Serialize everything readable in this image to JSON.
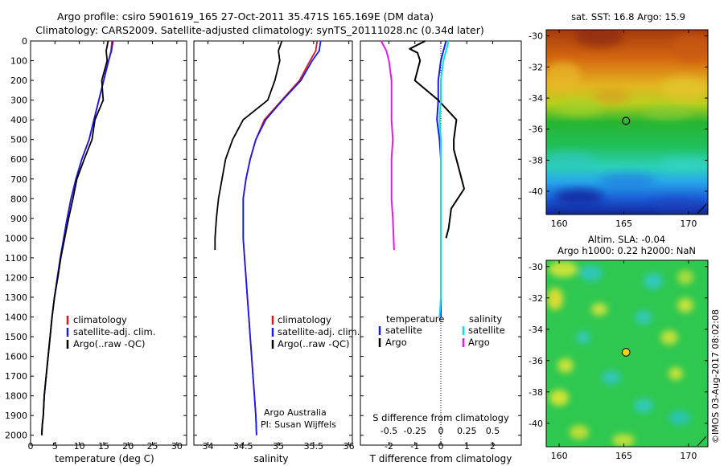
{
  "header": {
    "title_line1": "Argo profile: csiro 5901619_165 27-Oct-2011 35.471S 165.169E (DM data)",
    "title_line2": "Climatology: CARS2009. Satellite-adjusted climatology: synTS_20111028.nc (0.34d later)"
  },
  "colors": {
    "climatology": "#d11b1b",
    "satellite": "#1a1ae6",
    "argo": "#000000",
    "sal_satellite": "#00e6e6",
    "sal_argo": "#e619e6"
  },
  "chart_data": [
    {
      "type": "line",
      "panel": "temperature",
      "xlabel": "temperature (deg C)",
      "ylabel": "",
      "xlim": [
        0,
        32
      ],
      "ylim": [
        2050,
        0
      ],
      "xticks": [
        0,
        5,
        10,
        15,
        20,
        25,
        30
      ],
      "yticks": [
        0,
        100,
        200,
        300,
        400,
        500,
        600,
        700,
        800,
        900,
        1000,
        1100,
        1200,
        1300,
        1400,
        1500,
        1600,
        1700,
        1800,
        1900,
        2000
      ],
      "legend": [
        "climatology",
        "satellite-adj. clim.",
        "Argo(..raw -QC)"
      ],
      "series": [
        {
          "name": "climatology",
          "x": [
            16.7,
            16.5,
            16.0,
            15.0,
            14.0,
            13.0,
            12.0,
            10.5,
            9.3,
            8.3,
            7.5,
            6.8,
            6.1,
            5.5,
            4.9,
            4.4,
            4.0,
            3.6,
            3.2,
            2.8,
            2.6,
            2.4,
            2.3
          ],
          "y": [
            0,
            50,
            100,
            200,
            300,
            400,
            500,
            600,
            700,
            800,
            900,
            1000,
            1100,
            1200,
            1300,
            1400,
            1500,
            1600,
            1700,
            1800,
            1900,
            1950,
            2000
          ]
        },
        {
          "name": "satellite-adj. clim.",
          "x": [
            16.9,
            16.6,
            16.0,
            15.0,
            14.0,
            13.0,
            12.0,
            10.5,
            9.3,
            8.3,
            7.5,
            6.8,
            6.1,
            5.5,
            4.9,
            4.4,
            4.0,
            3.6,
            3.2,
            2.8,
            2.6,
            2.4,
            2.3
          ],
          "y": [
            0,
            50,
            100,
            200,
            300,
            400,
            500,
            600,
            700,
            800,
            900,
            1000,
            1100,
            1200,
            1300,
            1400,
            1500,
            1600,
            1700,
            1800,
            1900,
            1950,
            2000
          ]
        },
        {
          "name": "Argo(..raw -QC)",
          "x": [
            15.9,
            15.5,
            15.7,
            14.6,
            14.9,
            13.2,
            12.6,
            11.0,
            9.5,
            8.7,
            7.8,
            7.0,
            6.2,
            5.6,
            4.9,
            4.4,
            4.0,
            3.6,
            3.2,
            2.8,
            2.6,
            2.4,
            2.3
          ],
          "y": [
            0,
            50,
            100,
            200,
            300,
            400,
            500,
            600,
            700,
            800,
            900,
            1000,
            1100,
            1200,
            1300,
            1400,
            1500,
            1600,
            1700,
            1800,
            1900,
            1950,
            2000
          ]
        }
      ]
    },
    {
      "type": "line",
      "panel": "salinity",
      "xlabel": "salinity",
      "xlim": [
        33.8,
        36.05
      ],
      "ylim": [
        2050,
        0
      ],
      "xticks": [
        34,
        34.5,
        35,
        35.5,
        36
      ],
      "legend": [
        "climatology",
        "satellite-adj. clim.",
        "Argo(..raw -QC)"
      ],
      "annotation": [
        "Argo Australia",
        "PI: Susan Wijffels"
      ],
      "series": [
        {
          "name": "climatology",
          "x": [
            35.55,
            35.53,
            35.45,
            35.3,
            35.05,
            34.8,
            34.68,
            34.6,
            34.54,
            34.5,
            34.5,
            34.5,
            34.52,
            34.54,
            34.56,
            34.58,
            34.6,
            34.62,
            34.64,
            34.66,
            34.68,
            34.69
          ],
          "y": [
            0,
            50,
            100,
            200,
            300,
            400,
            500,
            600,
            700,
            800,
            900,
            1000,
            1100,
            1200,
            1300,
            1400,
            1500,
            1600,
            1700,
            1800,
            1900,
            2000
          ]
        },
        {
          "name": "satellite-adj. clim.",
          "x": [
            35.6,
            35.58,
            35.48,
            35.32,
            35.06,
            34.82,
            34.68,
            34.6,
            34.54,
            34.5,
            34.5,
            34.5,
            34.52,
            34.54,
            34.56,
            34.58,
            34.6,
            34.62,
            34.64,
            34.66,
            34.68,
            34.69
          ],
          "y": [
            0,
            50,
            100,
            200,
            300,
            400,
            500,
            600,
            700,
            800,
            900,
            1000,
            1100,
            1200,
            1300,
            1400,
            1500,
            1600,
            1700,
            1800,
            1900,
            2000
          ]
        },
        {
          "name": "Argo(..raw -QC)",
          "x": [
            35.05,
            35.0,
            35.02,
            34.95,
            34.85,
            34.5,
            34.35,
            34.25,
            34.2,
            34.15,
            34.12,
            34.1,
            34.1
          ],
          "y": [
            0,
            50,
            100,
            200,
            300,
            400,
            500,
            600,
            700,
            800,
            900,
            1000,
            1060
          ]
        }
      ]
    },
    {
      "type": "line",
      "panel": "difference",
      "xlabel": "T difference from climatology",
      "xlabel_top": "S difference from climatology",
      "xlim": [
        -3.1,
        3.1
      ],
      "ylim": [
        2050,
        0
      ],
      "xticks_bottom": [
        -2,
        -1,
        0,
        1,
        2
      ],
      "xticks_top_labels": [
        "-0.5",
        "-0.25",
        "0",
        "0.25",
        "0.5"
      ],
      "xticks_top_values": [
        -2,
        -1,
        0,
        1,
        2
      ],
      "legend_temperature": [
        "temperature",
        "satellite",
        "Argo"
      ],
      "legend_salinity": [
        "salinity",
        "satellite",
        "Argo"
      ],
      "series": [
        {
          "name": "T satellite",
          "x": [
            0.2,
            0.1,
            0.0,
            -0.1,
            -0.1,
            -0.15,
            -0.05,
            0.0,
            0.0,
            0.0,
            0.0,
            0.0,
            0.0,
            0.0,
            0.0,
            0.0
          ],
          "y": [
            0,
            50,
            100,
            200,
            300,
            400,
            500,
            600,
            700,
            800,
            900,
            1000,
            1100,
            1200,
            1300,
            1400
          ]
        },
        {
          "name": "T Argo",
          "x": [
            -0.6,
            -1.2,
            -0.9,
            -0.8,
            -1.0,
            -0.1,
            0.6,
            0.5,
            0.5,
            0.7,
            0.9,
            0.4,
            0.3,
            0.2
          ],
          "y": [
            0,
            40,
            60,
            100,
            200,
            300,
            400,
            500,
            550,
            650,
            750,
            850,
            950,
            1000
          ]
        },
        {
          "name": "S satellite",
          "x": [
            0.3,
            0.2,
            0.1,
            0.0,
            0.0,
            -0.05,
            0.0,
            0.0,
            0.0,
            0.0,
            0.0,
            0.0,
            0.0,
            0.0,
            0.0,
            -0.05
          ],
          "y": [
            0,
            50,
            100,
            200,
            300,
            400,
            500,
            600,
            700,
            800,
            900,
            1000,
            1100,
            1200,
            1300,
            1400
          ]
        },
        {
          "name": "S Argo",
          "x": [
            -2.3,
            -2.1,
            -2.0,
            -1.9,
            -1.9,
            -1.9,
            -1.85,
            -1.9,
            -1.9,
            -1.9,
            -1.85,
            -1.8
          ],
          "y": [
            0,
            50,
            100,
            200,
            300,
            400,
            500,
            600,
            700,
            800,
            900,
            1060
          ]
        }
      ]
    },
    {
      "type": "heatmap",
      "panel": "sat-sst-map",
      "title": "sat. SST: 16.8 Argo: 15.9",
      "xlim": [
        159,
        171.5
      ],
      "ylim": [
        -41.5,
        -29.6
      ],
      "xticks": [
        160,
        165,
        170
      ],
      "yticks": [
        -30,
        -32,
        -34,
        -36,
        -38,
        -40
      ],
      "marker": {
        "lon": 165.169,
        "lat": -35.471
      }
    },
    {
      "type": "heatmap",
      "panel": "sla-map",
      "title_line1": "Altim. SLA: -0.04",
      "title_line2": "Argo h1000: 0.22 h2000: NaN",
      "xlim": [
        159,
        171.5
      ],
      "ylim": [
        -41.5,
        -29.6
      ],
      "xticks": [
        160,
        165,
        170
      ],
      "yticks": [
        -30,
        -32,
        -34,
        -36,
        -38,
        -40
      ],
      "marker": {
        "lon": 165.169,
        "lat": -35.471
      }
    }
  ],
  "footer": {
    "imos_stamp": "©IMOS 03-Aug-2017 08:02:08"
  }
}
